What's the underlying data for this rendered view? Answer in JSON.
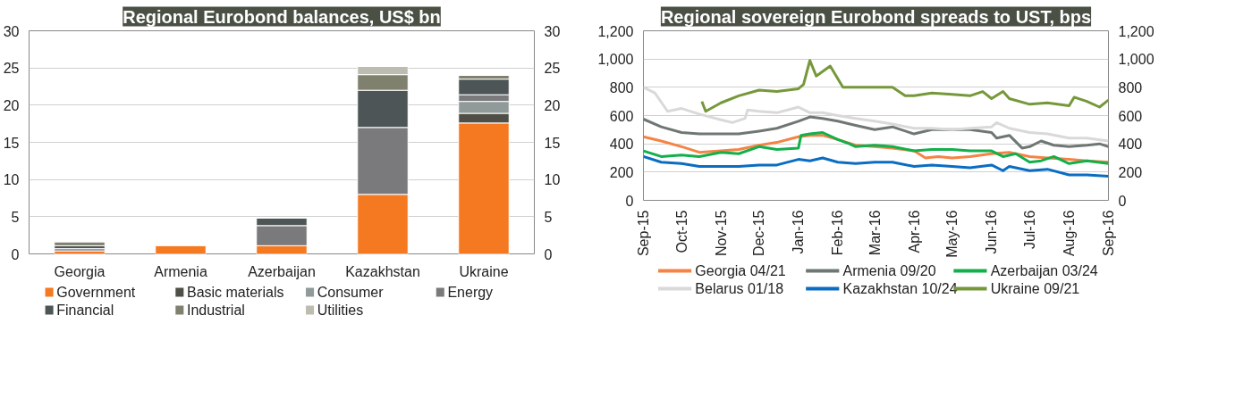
{
  "chart_data": [
    {
      "type": "bar",
      "title": "Regional Eurobond balances, US$ bn",
      "stacked": true,
      "categories": [
        "Georgia",
        "Armenia",
        "Azerbaijan",
        "Kazakhstan",
        "Ukraine"
      ],
      "series": [
        {
          "name": "Government",
          "color": "#f47920",
          "values": [
            0.4,
            1.1,
            1.1,
            8.0,
            17.6
          ]
        },
        {
          "name": "Basic materials",
          "color": "#4f4f47",
          "values": [
            null,
            null,
            null,
            null,
            1.3
          ]
        },
        {
          "name": "Consumer",
          "color": "#8f9a99",
          "values": [
            null,
            null,
            null,
            null,
            1.6
          ]
        },
        {
          "name": "Energy",
          "color": "#7a7a7c",
          "values": [
            0.3,
            null,
            2.7,
            9.0,
            0.9
          ]
        },
        {
          "name": "Financial",
          "color": "#4d5556",
          "values": [
            0.4,
            null,
            1.0,
            5.0,
            2.1
          ]
        },
        {
          "name": "Industrial",
          "color": "#80806f",
          "values": [
            0.5,
            null,
            null,
            2.1,
            0.5
          ]
        },
        {
          "name": "Utilities",
          "color": "#bdbcb0",
          "values": [
            null,
            null,
            null,
            1.1,
            null
          ]
        }
      ],
      "ylim": [
        0,
        30
      ],
      "yticks": [
        0,
        5,
        10,
        15,
        20,
        25,
        30
      ],
      "y2lim": [
        0,
        30
      ],
      "y2ticks": [
        0,
        5,
        10,
        15,
        20,
        25,
        30
      ],
      "grid": "y",
      "legend": "bottom"
    },
    {
      "type": "line",
      "title": "Regional sovereign Eurobond spreads to UST, bps",
      "xlim": [
        "2015-09-01",
        "2016-09-01"
      ],
      "xticks": [
        {
          "value": "2015-09-01",
          "label": "Sep-15"
        },
        {
          "value": "2015-10-01",
          "label": "Oct-15"
        },
        {
          "value": "2015-11-01",
          "label": "Nov-15"
        },
        {
          "value": "2015-12-01",
          "label": "Dec-15"
        },
        {
          "value": "2016-01-01",
          "label": "Jan-16"
        },
        {
          "value": "2016-02-01",
          "label": "Feb-16"
        },
        {
          "value": "2016-03-01",
          "label": "Mar-16"
        },
        {
          "value": "2016-04-01",
          "label": "Apr-16"
        },
        {
          "value": "2016-05-01",
          "label": "May-16"
        },
        {
          "value": "2016-06-01",
          "label": "Jun-16"
        },
        {
          "value": "2016-07-01",
          "label": "Jul-16"
        },
        {
          "value": "2016-08-01",
          "label": "Aug-16"
        },
        {
          "value": "2016-09-01",
          "label": "Sep-16"
        }
      ],
      "ylim": [
        0,
        1200
      ],
      "yticks": [
        0,
        {
          "value": 200,
          "label": "200"
        },
        {
          "value": 400,
          "label": "400"
        },
        {
          "value": 600,
          "label": "600"
        },
        {
          "value": 800,
          "label": "800"
        },
        {
          "value": 1000,
          "label": "1,000"
        },
        {
          "value": 1200,
          "label": "1,200"
        }
      ],
      "y2lim": [
        0,
        1200
      ],
      "y2ticks": [
        0,
        {
          "value": 200,
          "label": "200"
        },
        {
          "value": 400,
          "label": "400"
        },
        {
          "value": 600,
          "label": "600"
        },
        {
          "value": 800,
          "label": "800"
        },
        {
          "value": 1000,
          "label": "1,000"
        },
        {
          "value": 1200,
          "label": "1,200"
        }
      ],
      "grid": "y",
      "legend": "bottom",
      "marker": "none",
      "line_style": "solid",
      "series": [
        {
          "name": "Georgia 04/21",
          "color": "#f58345",
          "x": [
            "2015-09-01",
            "2015-09-15",
            "2015-10-01",
            "2015-10-15",
            "2015-11-01",
            "2015-11-15",
            "2015-12-01",
            "2015-12-15",
            "2016-01-01",
            "2016-01-10",
            "2016-01-20",
            "2016-02-01",
            "2016-02-15",
            "2016-03-01",
            "2016-03-15",
            "2016-04-01",
            "2016-04-10",
            "2016-04-20",
            "2016-05-01",
            "2016-05-15",
            "2016-06-01",
            "2016-06-15",
            "2016-07-01",
            "2016-07-15",
            "2016-08-01",
            "2016-08-15",
            "2016-09-01"
          ],
          "values": [
            450,
            420,
            380,
            340,
            350,
            360,
            390,
            410,
            450,
            460,
            460,
            430,
            390,
            380,
            370,
            350,
            300,
            310,
            300,
            310,
            330,
            340,
            310,
            300,
            290,
            280,
            270
          ]
        },
        {
          "name": "Armenia 09/20",
          "color": "#6f7773",
          "x": [
            "2015-09-01",
            "2015-09-15",
            "2015-10-01",
            "2015-10-15",
            "2015-11-01",
            "2015-11-15",
            "2015-12-01",
            "2015-12-15",
            "2016-01-01",
            "2016-01-10",
            "2016-01-20",
            "2016-02-01",
            "2016-02-15",
            "2016-03-01",
            "2016-03-15",
            "2016-04-01",
            "2016-04-15",
            "2016-05-01",
            "2016-05-15",
            "2016-06-01",
            "2016-06-05",
            "2016-06-15",
            "2016-06-25",
            "2016-07-01",
            "2016-07-10",
            "2016-07-20",
            "2016-08-01",
            "2016-08-15",
            "2016-08-25",
            "2016-09-01"
          ],
          "values": [
            575,
            520,
            480,
            470,
            470,
            470,
            490,
            510,
            560,
            590,
            580,
            560,
            530,
            500,
            520,
            470,
            500,
            500,
            500,
            480,
            440,
            460,
            370,
            380,
            420,
            390,
            380,
            390,
            400,
            380
          ]
        },
        {
          "name": "Azerbaijan 03/24",
          "color": "#12b04b",
          "x": [
            "2015-09-01",
            "2015-09-15",
            "2015-10-01",
            "2015-10-15",
            "2015-11-01",
            "2015-11-15",
            "2015-12-01",
            "2015-12-15",
            "2016-01-01",
            "2016-01-03",
            "2016-01-10",
            "2016-01-20",
            "2016-02-01",
            "2016-02-10",
            "2016-02-15",
            "2016-03-01",
            "2016-03-15",
            "2016-04-01",
            "2016-04-15",
            "2016-05-01",
            "2016-05-15",
            "2016-06-01",
            "2016-06-10",
            "2016-06-20",
            "2016-07-01",
            "2016-07-10",
            "2016-07-20",
            "2016-08-01",
            "2016-08-15",
            "2016-09-01"
          ],
          "values": [
            350,
            310,
            320,
            310,
            340,
            330,
            380,
            360,
            370,
            460,
            470,
            480,
            430,
            400,
            380,
            390,
            380,
            350,
            360,
            360,
            350,
            350,
            310,
            330,
            270,
            280,
            310,
            260,
            280,
            260
          ]
        },
        {
          "name": "Belarus 01/18",
          "color": "#d9d9d9",
          "x": [
            "2015-09-01",
            "2015-09-10",
            "2015-09-20",
            "2015-10-01",
            "2015-10-15",
            "2015-11-01",
            "2015-11-10",
            "2015-11-20",
            "2015-11-22",
            "2015-12-01",
            "2015-12-15",
            "2016-01-01",
            "2016-01-10",
            "2016-01-20",
            "2016-02-01",
            "2016-02-15",
            "2016-03-01",
            "2016-03-15",
            "2016-04-01",
            "2016-04-15",
            "2016-05-01",
            "2016-05-15",
            "2016-06-01",
            "2016-06-05",
            "2016-06-15",
            "2016-07-01",
            "2016-07-15",
            "2016-08-01",
            "2016-08-15",
            "2016-09-01"
          ],
          "values": [
            800,
            760,
            630,
            650,
            610,
            570,
            550,
            580,
            640,
            630,
            620,
            660,
            620,
            620,
            600,
            580,
            560,
            540,
            510,
            510,
            500,
            510,
            520,
            550,
            510,
            480,
            470,
            440,
            440,
            420
          ]
        },
        {
          "name": "Kazakhstan 10/24",
          "color": "#0a6dc2",
          "x": [
            "2015-09-01",
            "2015-09-15",
            "2015-10-01",
            "2015-10-15",
            "2015-11-01",
            "2015-11-15",
            "2015-12-01",
            "2015-12-15",
            "2016-01-01",
            "2016-01-10",
            "2016-01-20",
            "2016-02-01",
            "2016-02-15",
            "2016-03-01",
            "2016-03-15",
            "2016-04-01",
            "2016-04-15",
            "2016-05-01",
            "2016-05-15",
            "2016-06-01",
            "2016-06-10",
            "2016-06-15",
            "2016-07-01",
            "2016-07-15",
            "2016-08-01",
            "2016-08-15",
            "2016-09-01"
          ],
          "values": [
            310,
            270,
            260,
            240,
            240,
            240,
            250,
            250,
            290,
            280,
            300,
            270,
            260,
            270,
            270,
            240,
            250,
            240,
            230,
            250,
            210,
            240,
            210,
            220,
            180,
            180,
            170
          ]
        },
        {
          "name": "Ukraine 09/21",
          "color": "#76983a",
          "x": [
            "2015-10-17",
            "2015-10-20",
            "2015-11-01",
            "2015-11-15",
            "2015-12-01",
            "2015-12-15",
            "2016-01-01",
            "2016-01-05",
            "2016-01-10",
            "2016-01-15",
            "2016-01-26",
            "2016-02-05",
            "2016-02-15",
            "2016-03-01",
            "2016-03-15",
            "2016-03-25",
            "2016-04-01",
            "2016-04-15",
            "2016-05-01",
            "2016-05-15",
            "2016-05-25",
            "2016-06-01",
            "2016-06-10",
            "2016-06-15",
            "2016-07-01",
            "2016-07-15",
            "2016-08-01",
            "2016-08-05",
            "2016-08-15",
            "2016-08-25",
            "2016-09-01"
          ],
          "values": [
            700,
            630,
            690,
            740,
            780,
            770,
            790,
            820,
            990,
            880,
            950,
            800,
            800,
            800,
            800,
            740,
            740,
            760,
            750,
            740,
            770,
            720,
            770,
            720,
            680,
            690,
            670,
            730,
            700,
            660,
            710
          ]
        }
      ]
    }
  ]
}
